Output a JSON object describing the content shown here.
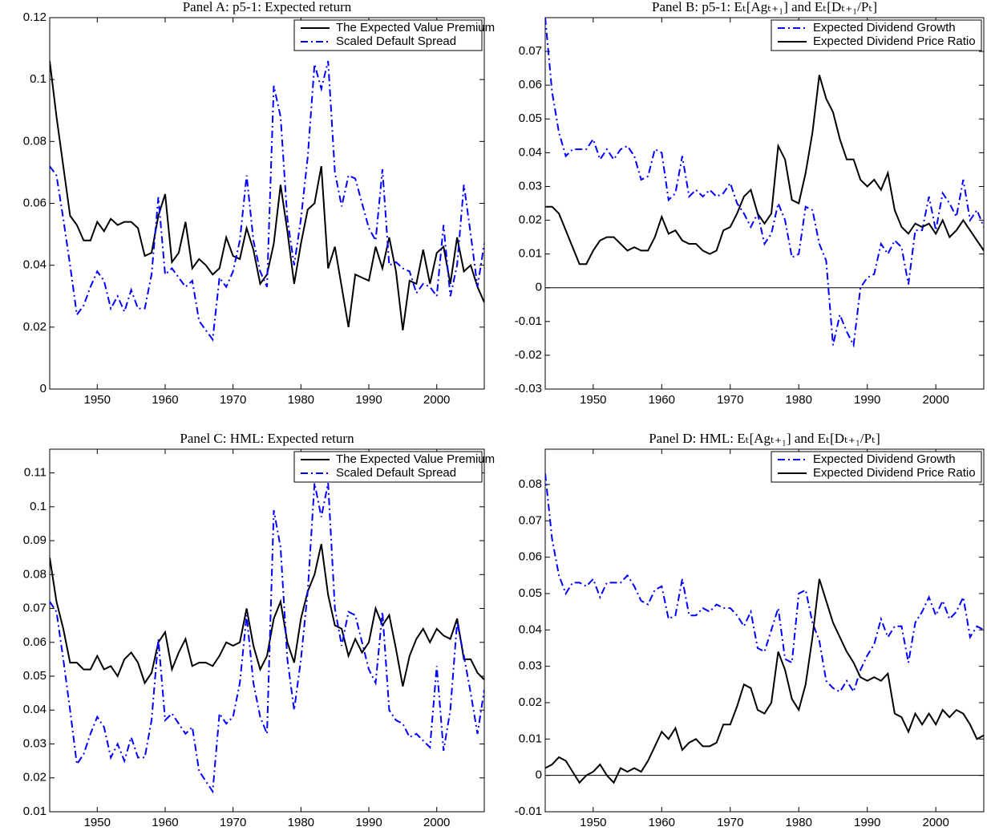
{
  "chart_data": [
    {
      "type": "line",
      "title": "Panel A: p5-1: Expected return",
      "legend": "upper right",
      "x": [
        1943,
        1944,
        1945,
        1946,
        1947,
        1948,
        1949,
        1950,
        1951,
        1952,
        1953,
        1954,
        1955,
        1956,
        1957,
        1958,
        1959,
        1960,
        1961,
        1962,
        1963,
        1964,
        1965,
        1966,
        1967,
        1968,
        1969,
        1970,
        1971,
        1972,
        1973,
        1974,
        1975,
        1976,
        1977,
        1978,
        1979,
        1980,
        1981,
        1982,
        1983,
        1984,
        1985,
        1986,
        1987,
        1988,
        1989,
        1990,
        1991,
        1992,
        1993,
        1994,
        1995,
        1996,
        1997,
        1998,
        1999,
        2000,
        2001,
        2002,
        2003,
        2004,
        2005,
        2006,
        2007
      ],
      "xlim": [
        1943,
        2007
      ],
      "xticks": [
        1950,
        1960,
        1970,
        1980,
        1990,
        2000
      ],
      "ylim": [
        0,
        0.12
      ],
      "yticks": [
        0,
        0.02,
        0.04,
        0.06,
        0.08,
        0.1,
        0.12
      ],
      "series": [
        {
          "name": "The Expected Value Premium",
          "color": "#000000",
          "style": "solid",
          "values": [
            0.106,
            0.088,
            0.072,
            0.056,
            0.053,
            0.048,
            0.048,
            0.054,
            0.051,
            0.055,
            0.053,
            0.054,
            0.054,
            0.052,
            0.043,
            0.044,
            0.056,
            0.063,
            0.041,
            0.044,
            0.054,
            0.039,
            0.042,
            0.04,
            0.037,
            0.039,
            0.049,
            0.043,
            0.042,
            0.052,
            0.045,
            0.034,
            0.037,
            0.047,
            0.066,
            0.051,
            0.034,
            0.047,
            0.058,
            0.06,
            0.072,
            0.039,
            0.046,
            0.033,
            0.02,
            0.037,
            0.036,
            0.035,
            0.046,
            0.039,
            0.049,
            0.038,
            0.019,
            0.035,
            0.034,
            0.045,
            0.034,
            0.044,
            0.046,
            0.034,
            0.049,
            0.038,
            0.04,
            0.033,
            0.028
          ]
        },
        {
          "name": "Scaled Default Spread",
          "color": "#0000ff",
          "style": "dash-dot",
          "values": [
            0.072,
            0.069,
            0.055,
            0.04,
            0.024,
            0.027,
            0.033,
            0.038,
            0.035,
            0.026,
            0.03,
            0.025,
            0.032,
            0.026,
            0.026,
            0.037,
            0.062,
            0.037,
            0.039,
            0.036,
            0.033,
            0.035,
            0.022,
            0.019,
            0.016,
            0.036,
            0.033,
            0.038,
            0.048,
            0.069,
            0.048,
            0.038,
            0.033,
            0.098,
            0.088,
            0.055,
            0.04,
            0.055,
            0.075,
            0.105,
            0.097,
            0.106,
            0.07,
            0.059,
            0.069,
            0.068,
            0.06,
            0.052,
            0.048,
            0.071,
            0.04,
            0.041,
            0.039,
            0.038,
            0.031,
            0.034,
            0.033,
            0.03,
            0.053,
            0.03,
            0.04,
            0.066,
            0.05,
            0.033,
            0.047
          ]
        }
      ]
    },
    {
      "type": "line",
      "title": "Panel B: p5-1: Eₜ[Agₜ₊₁] and Eₜ[Dₜ₊₁/Pₜ]",
      "legend": "upper right",
      "reference_line": 0,
      "x": [
        1943,
        1944,
        1945,
        1946,
        1947,
        1948,
        1949,
        1950,
        1951,
        1952,
        1953,
        1954,
        1955,
        1956,
        1957,
        1958,
        1959,
        1960,
        1961,
        1962,
        1963,
        1964,
        1965,
        1966,
        1967,
        1968,
        1969,
        1970,
        1971,
        1972,
        1973,
        1974,
        1975,
        1976,
        1977,
        1978,
        1979,
        1980,
        1981,
        1982,
        1983,
        1984,
        1985,
        1986,
        1987,
        1988,
        1989,
        1990,
        1991,
        1992,
        1993,
        1994,
        1995,
        1996,
        1997,
        1998,
        1999,
        2000,
        2001,
        2002,
        2003,
        2004,
        2005,
        2006,
        2007
      ],
      "xlim": [
        1943,
        2007
      ],
      "xticks": [
        1950,
        1960,
        1970,
        1980,
        1990,
        2000
      ],
      "ylim": [
        -0.03,
        0.08
      ],
      "yticks": [
        -0.03,
        -0.02,
        -0.01,
        0,
        0.01,
        0.02,
        0.03,
        0.04,
        0.05,
        0.06,
        0.07
      ],
      "series": [
        {
          "name": "Expected Dividend Growth",
          "color": "#0000ff",
          "style": "dash-dot",
          "values": [
            0.08,
            0.058,
            0.046,
            0.039,
            0.041,
            0.041,
            0.041,
            0.044,
            0.038,
            0.041,
            0.038,
            0.041,
            0.042,
            0.039,
            0.032,
            0.033,
            0.041,
            0.04,
            0.026,
            0.028,
            0.039,
            0.027,
            0.029,
            0.027,
            0.029,
            0.027,
            0.028,
            0.031,
            0.025,
            0.022,
            0.018,
            0.022,
            0.013,
            0.016,
            0.025,
            0.02,
            0.009,
            0.01,
            0.024,
            0.023,
            0.013,
            0.008,
            -0.017,
            -0.008,
            -0.013,
            -0.017,
            0.0,
            0.003,
            0.004,
            0.013,
            0.01,
            0.014,
            0.012,
            0.001,
            0.017,
            0.017,
            0.027,
            0.017,
            0.028,
            0.025,
            0.021,
            0.032,
            0.02,
            0.023,
            0.018
          ]
        },
        {
          "name": "Expected Dividend Price Ratio",
          "color": "#000000",
          "style": "solid",
          "values": [
            0.024,
            0.024,
            0.022,
            0.017,
            0.012,
            0.007,
            0.007,
            0.011,
            0.014,
            0.015,
            0.015,
            0.013,
            0.011,
            0.012,
            0.011,
            0.011,
            0.015,
            0.021,
            0.016,
            0.017,
            0.014,
            0.013,
            0.013,
            0.011,
            0.01,
            0.011,
            0.017,
            0.018,
            0.022,
            0.027,
            0.029,
            0.022,
            0.019,
            0.022,
            0.042,
            0.038,
            0.026,
            0.025,
            0.034,
            0.046,
            0.063,
            0.056,
            0.052,
            0.044,
            0.038,
            0.038,
            0.032,
            0.03,
            0.032,
            0.029,
            0.034,
            0.023,
            0.018,
            0.016,
            0.019,
            0.018,
            0.019,
            0.016,
            0.02,
            0.015,
            0.017,
            0.02,
            0.017,
            0.014,
            0.011
          ]
        }
      ]
    },
    {
      "type": "line",
      "title": "Panel C: HML: Expected return",
      "legend": "upper right",
      "x": [
        1943,
        1944,
        1945,
        1946,
        1947,
        1948,
        1949,
        1950,
        1951,
        1952,
        1953,
        1954,
        1955,
        1956,
        1957,
        1958,
        1959,
        1960,
        1961,
        1962,
        1963,
        1964,
        1965,
        1966,
        1967,
        1968,
        1969,
        1970,
        1971,
        1972,
        1973,
        1974,
        1975,
        1976,
        1977,
        1978,
        1979,
        1980,
        1981,
        1982,
        1983,
        1984,
        1985,
        1986,
        1987,
        1988,
        1989,
        1990,
        1991,
        1992,
        1993,
        1994,
        1995,
        1996,
        1997,
        1998,
        1999,
        2000,
        2001,
        2002,
        2003,
        2004,
        2005,
        2006,
        2007
      ],
      "xlim": [
        1943,
        2007
      ],
      "xticks": [
        1950,
        1960,
        1970,
        1980,
        1990,
        2000
      ],
      "ylim": [
        0.01,
        0.117
      ],
      "yticks": [
        0.01,
        0.02,
        0.03,
        0.04,
        0.05,
        0.06,
        0.07,
        0.08,
        0.09,
        0.1,
        0.11
      ],
      "series": [
        {
          "name": "The Expected Value Premium",
          "color": "#000000",
          "style": "solid",
          "values": [
            0.085,
            0.072,
            0.064,
            0.054,
            0.054,
            0.052,
            0.052,
            0.056,
            0.052,
            0.053,
            0.05,
            0.055,
            0.057,
            0.054,
            0.048,
            0.051,
            0.06,
            0.063,
            0.052,
            0.057,
            0.061,
            0.053,
            0.054,
            0.054,
            0.053,
            0.056,
            0.06,
            0.059,
            0.06,
            0.07,
            0.059,
            0.052,
            0.056,
            0.067,
            0.072,
            0.06,
            0.054,
            0.067,
            0.075,
            0.08,
            0.089,
            0.074,
            0.065,
            0.064,
            0.056,
            0.061,
            0.057,
            0.06,
            0.07,
            0.065,
            0.068,
            0.058,
            0.047,
            0.056,
            0.061,
            0.064,
            0.06,
            0.064,
            0.062,
            0.061,
            0.067,
            0.055,
            0.055,
            0.051,
            0.049
          ]
        },
        {
          "name": "Scaled Default Spread",
          "color": "#0000ff",
          "style": "dash-dot",
          "values": [
            0.072,
            0.069,
            0.055,
            0.04,
            0.024,
            0.027,
            0.033,
            0.038,
            0.035,
            0.026,
            0.03,
            0.025,
            0.032,
            0.026,
            0.026,
            0.037,
            0.061,
            0.037,
            0.039,
            0.036,
            0.033,
            0.035,
            0.022,
            0.019,
            0.016,
            0.039,
            0.036,
            0.038,
            0.048,
            0.068,
            0.048,
            0.038,
            0.033,
            0.099,
            0.088,
            0.055,
            0.04,
            0.055,
            0.075,
            0.107,
            0.097,
            0.107,
            0.07,
            0.059,
            0.069,
            0.068,
            0.06,
            0.052,
            0.048,
            0.069,
            0.04,
            0.037,
            0.036,
            0.032,
            0.033,
            0.031,
            0.029,
            0.053,
            0.028,
            0.04,
            0.066,
            0.056,
            0.045,
            0.033,
            0.046
          ]
        }
      ]
    },
    {
      "type": "line",
      "title": "Panel D: HML: Eₜ[Agₜ₊₁] and Eₜ[Dₜ₊₁/Pₜ]",
      "legend": "upper right",
      "reference_line": 0,
      "x": [
        1943,
        1944,
        1945,
        1946,
        1947,
        1948,
        1949,
        1950,
        1951,
        1952,
        1953,
        1954,
        1955,
        1956,
        1957,
        1958,
        1959,
        1960,
        1961,
        1962,
        1963,
        1964,
        1965,
        1966,
        1967,
        1968,
        1969,
        1970,
        1971,
        1972,
        1973,
        1974,
        1975,
        1976,
        1977,
        1978,
        1979,
        1980,
        1981,
        1982,
        1983,
        1984,
        1985,
        1986,
        1987,
        1988,
        1989,
        1990,
        1991,
        1992,
        1993,
        1994,
        1995,
        1996,
        1997,
        1998,
        1999,
        2000,
        2001,
        2002,
        2003,
        2004,
        2005,
        2006,
        2007
      ],
      "xlim": [
        1943,
        2007
      ],
      "xticks": [
        1950,
        1960,
        1970,
        1980,
        1990,
        2000
      ],
      "ylim": [
        -0.01,
        0.0897
      ],
      "yticks": [
        -0.01,
        0,
        0.01,
        0.02,
        0.03,
        0.04,
        0.05,
        0.06,
        0.07,
        0.08
      ],
      "series": [
        {
          "name": "Expected Dividend Growth",
          "color": "#0000ff",
          "style": "dash-dot",
          "values": [
            0.083,
            0.065,
            0.055,
            0.05,
            0.053,
            0.053,
            0.052,
            0.054,
            0.049,
            0.053,
            0.053,
            0.053,
            0.055,
            0.052,
            0.048,
            0.047,
            0.051,
            0.052,
            0.043,
            0.044,
            0.054,
            0.044,
            0.044,
            0.046,
            0.045,
            0.047,
            0.046,
            0.046,
            0.044,
            0.041,
            0.045,
            0.035,
            0.034,
            0.04,
            0.046,
            0.032,
            0.031,
            0.05,
            0.051,
            0.042,
            0.037,
            0.026,
            0.024,
            0.023,
            0.026,
            0.023,
            0.029,
            0.033,
            0.036,
            0.043,
            0.038,
            0.041,
            0.041,
            0.031,
            0.042,
            0.045,
            0.049,
            0.044,
            0.048,
            0.043,
            0.045,
            0.049,
            0.038,
            0.041,
            0.04
          ]
        },
        {
          "name": "Expected Dividend Price Ratio",
          "color": "#000000",
          "style": "solid",
          "values": [
            0.002,
            0.003,
            0.005,
            0.004,
            0.001,
            -0.002,
            0.0,
            0.001,
            0.003,
            0.0,
            -0.002,
            0.002,
            0.001,
            0.002,
            0.001,
            0.004,
            0.008,
            0.012,
            0.01,
            0.013,
            0.007,
            0.009,
            0.01,
            0.008,
            0.008,
            0.009,
            0.014,
            0.014,
            0.019,
            0.025,
            0.024,
            0.018,
            0.017,
            0.02,
            0.034,
            0.029,
            0.021,
            0.018,
            0.025,
            0.038,
            0.054,
            0.048,
            0.042,
            0.038,
            0.034,
            0.031,
            0.027,
            0.026,
            0.027,
            0.026,
            0.028,
            0.017,
            0.016,
            0.012,
            0.017,
            0.014,
            0.017,
            0.014,
            0.018,
            0.016,
            0.018,
            0.017,
            0.014,
            0.01,
            0.011
          ]
        }
      ]
    }
  ]
}
